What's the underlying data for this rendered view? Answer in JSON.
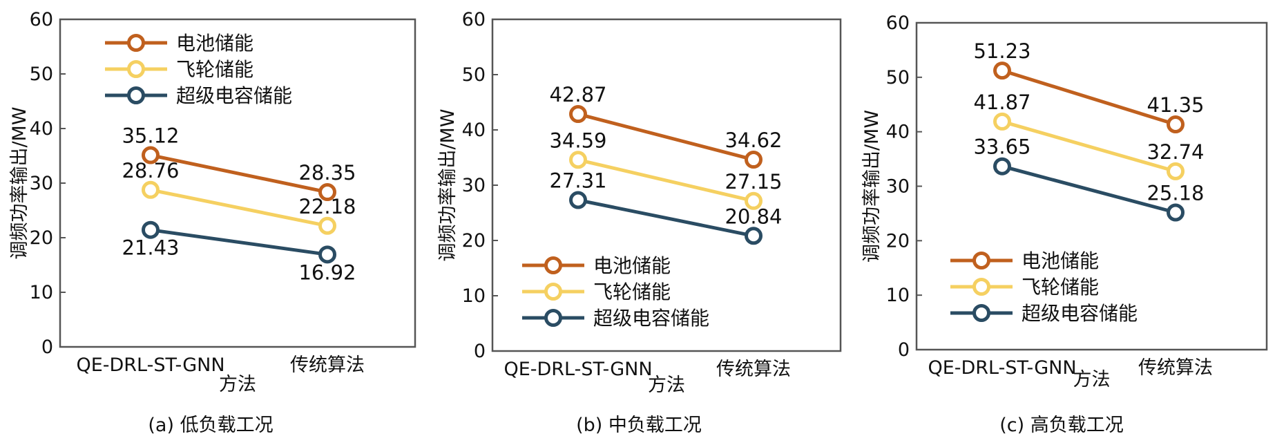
{
  "chart_data": [
    {
      "type": "line",
      "caption": "(a) 低负载工况",
      "categories": [
        "QE-DRL-ST-GNN",
        "传统算法"
      ],
      "xlabel": "方法",
      "ylabel": "调频功率输出/MW",
      "ylim": [
        0,
        60
      ],
      "yticks": [
        "0",
        "10",
        "20",
        "30",
        "40",
        "50",
        "60"
      ],
      "legend_position": "top-left",
      "series": [
        {
          "name": "电池储能",
          "color": "#c0601e",
          "values": [
            35.12,
            28.35
          ],
          "labels": [
            "35.12",
            "28.35"
          ],
          "label_side": [
            "above",
            "above"
          ]
        },
        {
          "name": "飞轮储能",
          "color": "#f5d061",
          "values": [
            28.76,
            22.18
          ],
          "labels": [
            "28.76",
            "22.18"
          ],
          "label_side": [
            "above",
            "above"
          ]
        },
        {
          "name": "超级电容储能",
          "color": "#2a4c63",
          "values": [
            21.43,
            16.92
          ],
          "labels": [
            "21.43",
            "16.92"
          ],
          "label_side": [
            "below",
            "below"
          ]
        }
      ]
    },
    {
      "type": "line",
      "caption": "(b) 中负载工况",
      "categories": [
        "QE-DRL-ST-GNN",
        "传统算法"
      ],
      "xlabel": "方法",
      "ylabel": "调频功率输出/MW",
      "ylim": [
        0,
        60
      ],
      "yticks": [
        "0",
        "10",
        "20",
        "30",
        "40",
        "50",
        "60"
      ],
      "legend_position": "bottom-left",
      "series": [
        {
          "name": "电池储能",
          "color": "#c0601e",
          "values": [
            42.87,
            34.62
          ],
          "labels": [
            "42.87",
            "34.62"
          ],
          "label_side": [
            "above",
            "above"
          ]
        },
        {
          "name": "飞轮储能",
          "color": "#f5d061",
          "values": [
            34.59,
            27.15
          ],
          "labels": [
            "34.59",
            "27.15"
          ],
          "label_side": [
            "above",
            "above"
          ]
        },
        {
          "name": "超级电容储能",
          "color": "#2a4c63",
          "values": [
            27.31,
            20.84
          ],
          "labels": [
            "27.31",
            "20.84"
          ],
          "label_side": [
            "above",
            "above"
          ]
        }
      ]
    },
    {
      "type": "line",
      "caption": "(c) 高负载工况",
      "categories": [
        "QE-DRL-ST-GNN",
        "传统算法"
      ],
      "xlabel": "方法",
      "ylabel": "调频功率输出/MW",
      "ylim": [
        0,
        60
      ],
      "yticks": [
        "0",
        "10",
        "20",
        "30",
        "40",
        "50",
        "60"
      ],
      "legend_position": "bottom-left",
      "series": [
        {
          "name": "电池储能",
          "color": "#c0601e",
          "values": [
            51.23,
            41.35
          ],
          "labels": [
            "51.23",
            "41.35"
          ],
          "label_side": [
            "above",
            "above"
          ]
        },
        {
          "name": "飞轮储能",
          "color": "#f5d061",
          "values": [
            41.87,
            32.74
          ],
          "labels": [
            "41.87",
            "32.74"
          ],
          "label_side": [
            "above",
            "above"
          ]
        },
        {
          "name": "超级电容储能",
          "color": "#2a4c63",
          "values": [
            33.65,
            25.18
          ],
          "labels": [
            "33.65",
            "25.18"
          ],
          "label_side": [
            "above",
            "above"
          ]
        }
      ]
    }
  ]
}
